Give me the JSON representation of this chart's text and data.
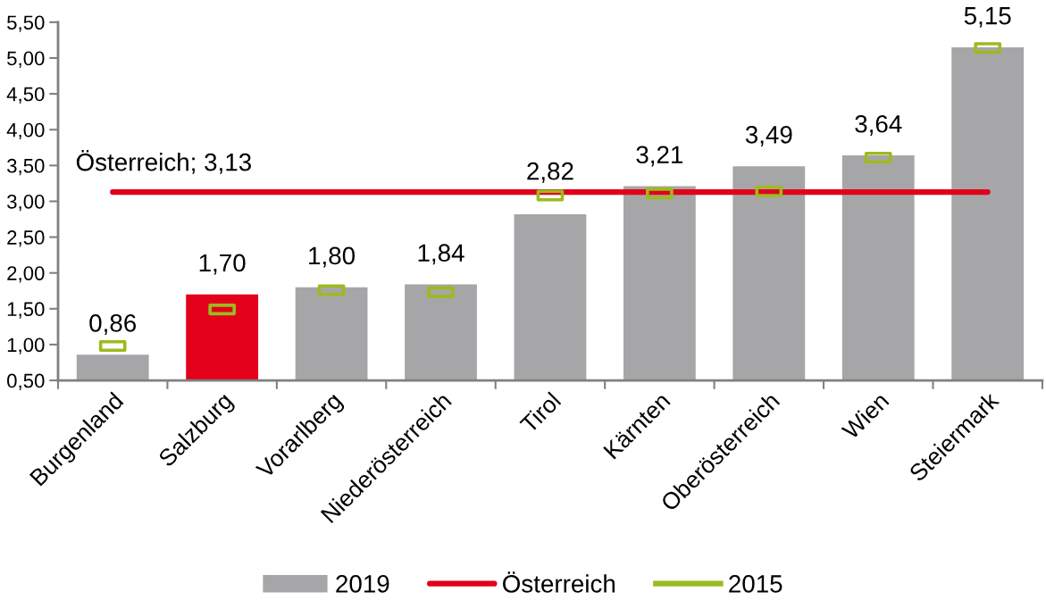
{
  "chart_data": {
    "type": "bar",
    "categories": [
      "Burgenland",
      "Salzburg",
      "Vorarlberg",
      "Niederösterreich",
      "Tirol",
      "Kärnten",
      "Oberösterreich",
      "Wien",
      "Steiermark"
    ],
    "series": [
      {
        "name": "2019",
        "color": "#a6a6a8",
        "colors": [
          "#a6a6a8",
          "#e2001a",
          "#a6a6a8",
          "#a6a6a8",
          "#a6a6a8",
          "#a6a6a8",
          "#a6a6a8",
          "#a6a6a8",
          "#a6a6a8"
        ],
        "values": [
          0.86,
          1.7,
          1.8,
          1.84,
          2.82,
          3.21,
          3.49,
          3.64,
          5.15
        ],
        "value_labels": [
          "0,86",
          "1,70",
          "1,80",
          "1,84",
          "2,82",
          "3,21",
          "3,49",
          "3,64",
          "5,15"
        ]
      },
      {
        "name": "Österreich",
        "type": "line",
        "color": "#e2001a",
        "values": [
          3.13,
          3.13,
          3.13,
          3.13,
          3.13,
          3.13,
          3.13,
          3.13,
          3.13
        ],
        "value_labels": [
          "Österreich; 3,13",
          null,
          null,
          null,
          null,
          null,
          null,
          null,
          null
        ]
      },
      {
        "name": "2015",
        "type": "scatter",
        "color": "#9bbb1e",
        "values": [
          0.98,
          1.49,
          1.76,
          1.73,
          3.08,
          3.11,
          3.14,
          3.61,
          5.14
        ]
      }
    ],
    "ylim": [
      0.5,
      5.5
    ],
    "yticks": [
      {
        "value": 0.5,
        "label": "0,50"
      },
      {
        "value": 1.0,
        "label": "1,00"
      },
      {
        "value": 1.5,
        "label": "1,50"
      },
      {
        "value": 2.0,
        "label": "2,00"
      },
      {
        "value": 2.5,
        "label": "2,50"
      },
      {
        "value": 3.0,
        "label": "3,00"
      },
      {
        "value": 3.5,
        "label": "3,50"
      },
      {
        "value": 4.0,
        "label": "4,00"
      },
      {
        "value": 4.5,
        "label": "4,50"
      },
      {
        "value": 5.0,
        "label": "5,00"
      },
      {
        "value": 5.5,
        "label": "5,50"
      }
    ],
    "grid": false,
    "legend": "bottom"
  }
}
